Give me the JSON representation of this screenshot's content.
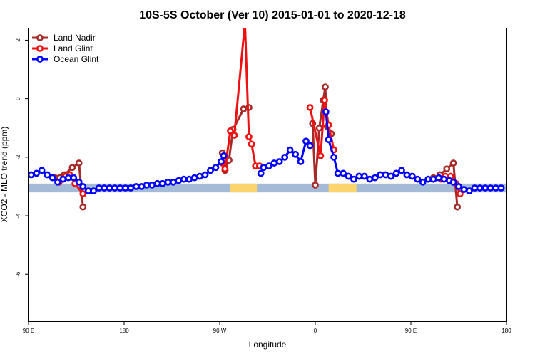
{
  "chart_data": {
    "type": "line",
    "title": "10S-5S October (Ver 10)   2015-01-01 to 2020-12-18",
    "xlabel": "Longitude",
    "ylabel": "XCO2 - MLO trend (ppm)",
    "xlim": [
      90,
      450
    ],
    "ylim": [
      -7.6,
      2.4
    ],
    "x_ticks": [
      {
        "value": 90,
        "label": "90 E"
      },
      {
        "value": 162,
        "label": "180"
      },
      {
        "value": 234,
        "label": "90 W"
      },
      {
        "value": 306,
        "label": "0"
      },
      {
        "value": 378,
        "label": "90 E"
      },
      {
        "value": 450,
        "label": "180"
      }
    ],
    "y_ticks": [
      {
        "value": 2,
        "label": "2"
      },
      {
        "value": 0,
        "label": "0"
      },
      {
        "value": -2,
        "label": "-2"
      },
      {
        "value": -4,
        "label": "-4"
      },
      {
        "value": -6,
        "label": "-6"
      }
    ],
    "legend_position": "top-left",
    "grid": false,
    "series": [
      {
        "name": "Land Nadir",
        "color": "#a52a2a",
        "segments": [
          [
            [
              110,
              -2.7
            ],
            [
              113.5,
              -2.7
            ],
            [
              117,
              -2.6
            ],
            [
              123,
              -2.35
            ],
            [
              128,
              -2.2
            ],
            [
              131,
              -3.7
            ]
          ],
          [
            [
              236,
              -1.85
            ],
            [
              238,
              -2.45
            ],
            [
              241,
              -2.1
            ],
            [
              244,
              -1.05
            ],
            [
              252,
              -0.35
            ],
            [
              256,
              -0.3
            ]
          ],
          [
            [
              304,
              -0.85
            ],
            [
              306,
              -2.95
            ],
            [
              309,
              -1.0
            ],
            [
              312,
              -0.05
            ],
            [
              313.5,
              0.4
            ],
            [
              315,
              -0.95
            ],
            [
              318,
              -1.2
            ]
          ],
          [
            [
              395,
              -2.7
            ],
            [
              400,
              -2.6
            ],
            [
              405,
              -2.4
            ],
            [
              410,
              -2.2
            ],
            [
              413,
              -3.7
            ]
          ]
        ]
      },
      {
        "name": "Land Glint",
        "color": "#ee1111",
        "segments": [
          [
            [
              113,
              -2.85
            ],
            [
              118,
              -2.65
            ],
            [
              121,
              -2.6
            ],
            [
              125,
              -2.9
            ],
            [
              131,
              -3.25
            ]
          ],
          [
            [
              236,
              -2.2
            ],
            [
              238,
              -2.4
            ],
            [
              242,
              -1.1
            ],
            [
              245,
              -1.25
            ],
            [
              253,
              2.6
            ],
            [
              256,
              -1.3
            ],
            [
              258,
              -1.55
            ],
            [
              261,
              -2.3
            ],
            [
              264,
              -2.3
            ]
          ],
          [
            [
              302,
              -0.3
            ],
            [
              310,
              -1.95
            ],
            [
              313,
              -0.05
            ],
            [
              316,
              -0.9
            ],
            [
              320,
              -1.75
            ]
          ],
          [
            [
              401,
              -2.75
            ],
            [
              404,
              -2.65
            ],
            [
              408,
              -2.65
            ],
            [
              412,
              -2.9
            ],
            [
              415,
              -3.25
            ]
          ]
        ]
      },
      {
        "name": "Ocean Glint",
        "color": "#0000ff",
        "segments": [
          [
            [
              92,
              -2.6
            ],
            [
              96,
              -2.55
            ],
            [
              100,
              -2.45
            ],
            [
              104,
              -2.6
            ],
            [
              108,
              -2.7
            ],
            [
              112,
              -2.85
            ],
            [
              116,
              -2.75
            ],
            [
              120,
              -2.7
            ],
            [
              124,
              -2.7
            ],
            [
              128,
              -2.85
            ],
            [
              131,
              -3.0
            ],
            [
              135,
              -3.15
            ],
            [
              139,
              -3.15
            ],
            [
              143,
              -3.05
            ],
            [
              147,
              -3.05
            ],
            [
              151,
              -3.05
            ],
            [
              155,
              -3.05
            ],
            [
              159,
              -3.05
            ],
            [
              163,
              -3.05
            ],
            [
              167,
              -3.05
            ],
            [
              171,
              -3.0
            ],
            [
              175,
              -3.0
            ],
            [
              179,
              -2.95
            ],
            [
              183,
              -2.95
            ],
            [
              187,
              -2.9
            ],
            [
              191,
              -2.9
            ],
            [
              195,
              -2.85
            ],
            [
              199,
              -2.85
            ],
            [
              203,
              -2.8
            ],
            [
              207,
              -2.75
            ],
            [
              211,
              -2.75
            ],
            [
              215,
              -2.7
            ],
            [
              219,
              -2.65
            ],
            [
              223,
              -2.6
            ],
            [
              227,
              -2.45
            ],
            [
              231,
              -2.35
            ],
            [
              235,
              -2.15
            ],
            [
              237,
              -1.95
            ]
          ],
          [
            [
              265,
              -2.55
            ],
            [
              267,
              -2.35
            ],
            [
              271,
              -2.3
            ],
            [
              275,
              -2.2
            ],
            [
              279,
              -2.15
            ],
            [
              283,
              -2.0
            ],
            [
              287,
              -1.75
            ],
            [
              291,
              -1.9
            ],
            [
              295,
              -2.15
            ],
            [
              299,
              -1.45
            ],
            [
              302,
              -1.6
            ]
          ],
          [
            [
              314,
              -0.45
            ],
            [
              316,
              -1.4
            ],
            [
              320,
              -2.0
            ],
            [
              323,
              -2.55
            ],
            [
              327,
              -2.55
            ],
            [
              331,
              -2.65
            ],
            [
              335,
              -2.75
            ],
            [
              339,
              -2.65
            ],
            [
              343,
              -2.65
            ],
            [
              347,
              -2.75
            ],
            [
              351,
              -2.7
            ],
            [
              355,
              -2.6
            ],
            [
              359,
              -2.6
            ],
            [
              363,
              -2.65
            ],
            [
              367,
              -2.55
            ],
            [
              371,
              -2.45
            ],
            [
              375,
              -2.6
            ],
            [
              379,
              -2.65
            ],
            [
              383,
              -2.75
            ],
            [
              387,
              -2.85
            ],
            [
              391,
              -2.75
            ],
            [
              395,
              -2.75
            ],
            [
              399,
              -2.7
            ],
            [
              403,
              -2.75
            ],
            [
              407,
              -2.8
            ],
            [
              410,
              -2.85
            ],
            [
              414,
              -3.0
            ],
            [
              418,
              -3.1
            ],
            [
              422,
              -3.15
            ],
            [
              426,
              -3.05
            ],
            [
              430,
              -3.05
            ],
            [
              434,
              -3.05
            ],
            [
              438,
              -3.05
            ],
            [
              442,
              -3.05
            ],
            [
              446,
              -3.05
            ]
          ]
        ]
      }
    ],
    "ground_band": {
      "y_range": [
        -3.2,
        -2.9
      ],
      "ocean_color": "#a3bbd6",
      "land_color": "#fbd56b",
      "land_ranges": [
        [
          241.5,
          262
        ],
        [
          316,
          337
        ]
      ],
      "outline_color": "#c8a040"
    }
  }
}
